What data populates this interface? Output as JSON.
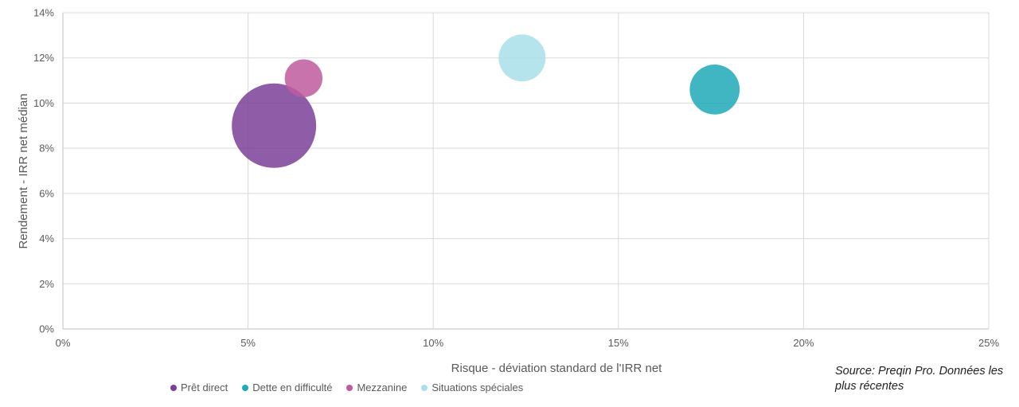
{
  "chart_data": {
    "type": "bubble",
    "xlabel": "Risque - déviation standard de l'IRR net",
    "ylabel": "Rendement - IRR net médian",
    "xlim": [
      0,
      25
    ],
    "ylim": [
      0,
      14
    ],
    "xticks": [
      "0%",
      "5%",
      "10%",
      "15%",
      "20%",
      "25%"
    ],
    "yticks": [
      "0%",
      "2%",
      "4%",
      "6%",
      "8%",
      "10%",
      "12%",
      "14%"
    ],
    "grid": true,
    "legend_position": "bottom",
    "series": [
      {
        "name": "Prêt direct",
        "color": "#7B3F98",
        "x": 5.7,
        "y": 9.0,
        "size": 1.0
      },
      {
        "name": "Dette en difficulté",
        "color": "#1FA9B9",
        "x": 17.6,
        "y": 10.6,
        "size": 0.35
      },
      {
        "name": "Mezzanine",
        "color": "#BF5A9F",
        "x": 6.5,
        "y": 11.1,
        "size": 0.2
      },
      {
        "name": "Situations spéciales",
        "color": "#A9DFEA",
        "x": 12.4,
        "y": 12.0,
        "size": 0.31
      }
    ]
  },
  "source_note": "Source: Preqin Pro. Données les plus récentes"
}
